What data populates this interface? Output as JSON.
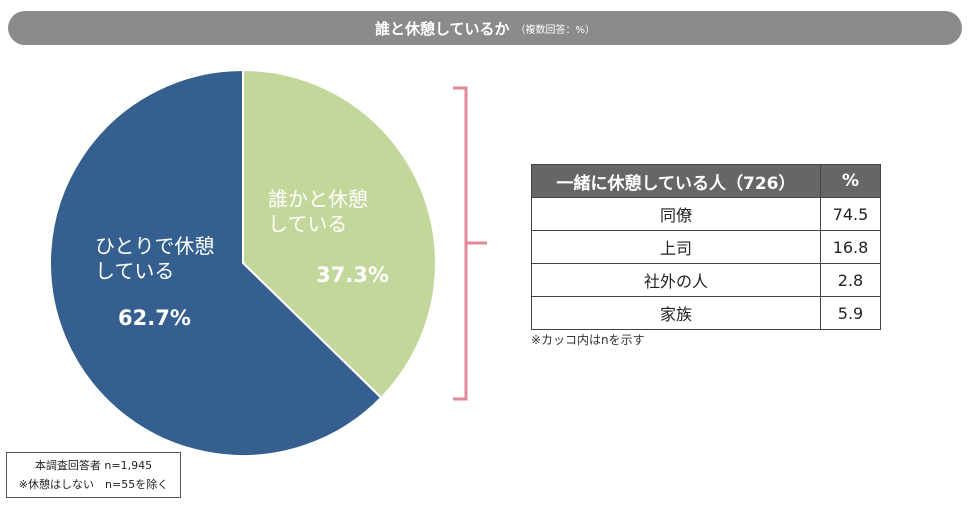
{
  "header": {
    "title": "誰と休憩しているか",
    "subtitle": "（複数回答：%）"
  },
  "chart_data": {
    "type": "pie",
    "title": "誰と休憩しているか",
    "slices": [
      {
        "label_lines": [
          "誰かと休憩",
          "している"
        ],
        "value": 37.3,
        "value_label": "37.3%",
        "color": "#c4d79b"
      },
      {
        "label_lines": [
          "ひとりで休憩",
          "している"
        ],
        "value": 62.7,
        "value_label": "62.7%",
        "color": "#355f8f"
      }
    ]
  },
  "breakdown_table": {
    "headers": [
      "一緒に休憩している人（726）",
      "%"
    ],
    "rows": [
      {
        "name": "同僚",
        "value": "74.5"
      },
      {
        "name": "上司",
        "value": "16.8"
      },
      {
        "name": "社外の人",
        "value": "2.8"
      },
      {
        "name": "家族",
        "value": "5.9"
      }
    ]
  },
  "table_note": "※カッコ内はnを示す",
  "base_note": {
    "line1": "本調査回答者 n=1,945",
    "line2": "※休憩はしない　n=55を除く"
  },
  "colors": {
    "bracket": "#e08a96",
    "title_bar": "#8b8b8b",
    "table_header": "#666666"
  }
}
